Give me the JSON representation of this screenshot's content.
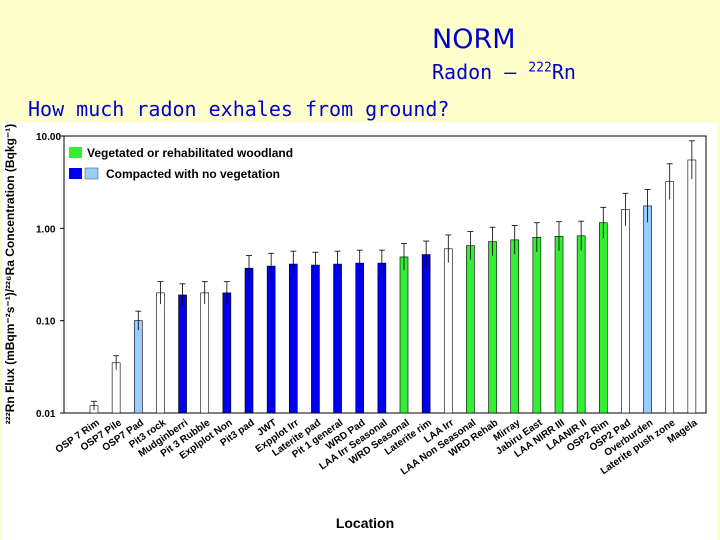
{
  "header": {
    "title": "NORM",
    "subtitle_prefix": "Radon – ",
    "subtitle_sup": "222",
    "subtitle_suffix": "Rn",
    "question": "How much radon exhales from ground?"
  },
  "chart_data": {
    "type": "bar",
    "scale": "log",
    "ylim": [
      0.01,
      10
    ],
    "yticks": [
      "10.00",
      "1.00",
      "0.10",
      "0.01"
    ],
    "ylabel": "²²²Rn Flux (mBqm⁻²s⁻¹)/²²⁶Ra Concentration (Bqkg⁻¹)",
    "xlabel": "Location",
    "legend": [
      {
        "label": "Vegetated or rehabilitated woodland",
        "color": "#33ee33"
      },
      {
        "label": "Compacted with no vegetation",
        "color": "#99ccff"
      }
    ],
    "colors": {
      "white": "#ffffff",
      "lightblue": "#99ccff",
      "blue": "#0000ee",
      "green": "#33ee33"
    },
    "categories": [
      "OSP 7 Rim",
      "OSP7 Pile",
      "OSP7 Pad",
      "Pit3 rock",
      "Mudginberri",
      "Pit 3 Rubble",
      "Explplot Non",
      "Pit3 pad",
      "JWT",
      "Expplot Irr",
      "Laterite pad",
      "Pit 1 general",
      "WRD Pad",
      "LAA Irr Seasonal",
      "WRD Seasonal",
      "Laterite rim",
      "LAA Irr",
      "LAA Non Seasonal",
      "WRD Rehab",
      "Mirray",
      "Jabiru East",
      "LAA NIRR III",
      "LAANIR II",
      "OSP2 Rim",
      "OSP2 Pad",
      "Overburden",
      "Laterite push zone",
      "Magela"
    ],
    "series": [
      {
        "values": [
          0.012,
          0.035,
          0.1,
          0.2,
          0.19,
          0.2,
          0.2,
          0.37,
          0.39,
          0.41,
          0.4,
          0.41,
          0.42,
          0.42,
          0.49,
          0.52,
          0.6,
          0.65,
          0.72,
          0.75,
          0.8,
          0.82,
          0.83,
          1.15,
          1.6,
          1.75,
          3.2,
          5.5
        ],
        "color_keys": [
          "white",
          "white",
          "lightblue",
          "white",
          "blue",
          "white",
          "blue",
          "blue",
          "blue",
          "blue",
          "blue",
          "blue",
          "blue",
          "blue",
          "green",
          "blue",
          "white",
          "green",
          "green",
          "green",
          "green",
          "green",
          "green",
          "green",
          "white",
          "lightblue",
          "white",
          "white"
        ]
      }
    ]
  }
}
